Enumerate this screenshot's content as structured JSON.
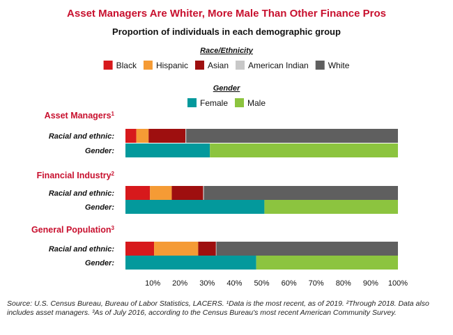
{
  "chart_data": {
    "type": "bar",
    "orientation": "horizontal",
    "stacked": true,
    "title": "Asset Managers Are Whiter, More Male Than Other Finance Pros",
    "subtitle": "Proportion of individuals in each demographic group",
    "legends": [
      {
        "heading": "Race/Ethnicity",
        "entries": [
          {
            "name": "Black",
            "color": "#d7191c"
          },
          {
            "name": "Hispanic",
            "color": "#f59b35"
          },
          {
            "name": "Asian",
            "color": "#9e0f0f"
          },
          {
            "name": "American Indian",
            "color": "#c8c8c8"
          },
          {
            "name": "White",
            "color": "#5f5f5f"
          }
        ]
      },
      {
        "heading": "Gender",
        "entries": [
          {
            "name": "Female",
            "color": "#03999c"
          },
          {
            "name": "Male",
            "color": "#8cc43f"
          }
        ]
      }
    ],
    "groups": [
      {
        "title": "Asset Managers",
        "sup": "1",
        "rows": [
          {
            "label": "Racial and ethnic:",
            "legend": 0,
            "values": [
              4,
              4.5,
              13.5,
              0.3,
              77.7
            ]
          },
          {
            "label": "Gender:",
            "legend": 1,
            "values": [
              31,
              69
            ]
          }
        ]
      },
      {
        "title": "Financial Industry",
        "sup": "2",
        "rows": [
          {
            "label": "Racial and ethnic:",
            "legend": 0,
            "values": [
              9,
              8,
              11.5,
              0.3,
              71.2
            ]
          },
          {
            "label": "Gender:",
            "legend": 1,
            "values": [
              51,
              49
            ]
          }
        ]
      },
      {
        "title": "General Population",
        "sup": "3",
        "rows": [
          {
            "label": "Racial and ethnic:",
            "legend": 0,
            "values": [
              10.5,
              16.2,
              6.5,
              0.2,
              66.6
            ]
          },
          {
            "label": "Gender:",
            "legend": 1,
            "values": [
              48,
              52
            ]
          }
        ]
      }
    ],
    "xlim": [
      0,
      100
    ],
    "x_ticks": [
      "10%",
      "20%",
      "30%",
      "40%",
      "50%",
      "60%",
      "70%",
      "80%",
      "90%",
      "100%"
    ],
    "grid": false
  },
  "footnote": "Source: U.S. Census Bureau, Bureau of Labor Statistics, LACERS. ¹Data is the most recent, as of 2019. ²Through 2018. Data also includes asset managers. ³As of July 2016, according to the Census Bureau's most recent American Community Survey."
}
